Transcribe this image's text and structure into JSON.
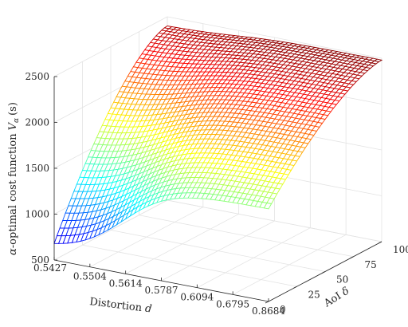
{
  "chart_data": {
    "type": "surface",
    "xlabel": "Distortion",
    "xlabel_var": "d",
    "ylabel": "AoI",
    "ylabel_var": "δ",
    "zlabel": "-optimal cost function",
    "zlabel_prefix": "α",
    "zlabel_var": "V",
    "zlabel_sub": "α",
    "zlabel_unit": "(s)",
    "x_ticks": [
      "0.5427",
      "0.5504",
      "0.5614",
      "0.5787",
      "0.6094",
      "0.6795",
      "0.8684"
    ],
    "y_ticks": [
      0,
      25,
      50,
      75,
      100
    ],
    "z_ticks": [
      500,
      1000,
      1500,
      2000,
      2500
    ],
    "xlim": [
      0,
      6
    ],
    "ylim": [
      0,
      100
    ],
    "zlim": [
      500,
      2500
    ],
    "grid": true,
    "colormap": "jet",
    "corner_values": {
      "d_min_aoi_0": 680,
      "d_min_aoi_100": 2400,
      "d_max_aoi_0": 1510,
      "d_max_aoi_100": 2480
    },
    "surface_shape": "sigmoid rise along distortion, saturating near 2450 s at high distortion; V grows with AoI"
  }
}
